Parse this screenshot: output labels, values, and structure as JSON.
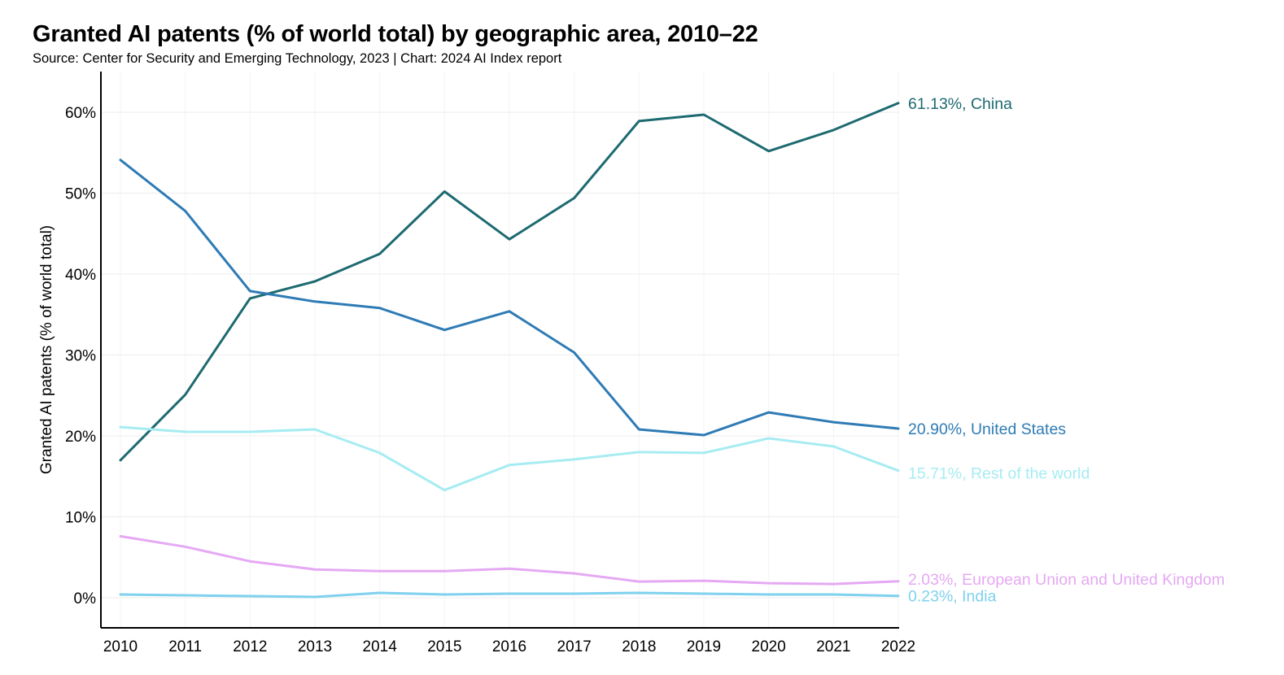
{
  "chart_data": {
    "type": "line",
    "title": "Granted AI patents (% of world total) by geographic area, 2010–22",
    "subtitle": "Source: Center for Security and Emerging Technology, 2023 | Chart: 2024 AI Index report",
    "xlabel": "",
    "ylabel": "Granted AI patents (% of world total)",
    "x": [
      2010,
      2011,
      2012,
      2013,
      2014,
      2015,
      2016,
      2017,
      2018,
      2019,
      2020,
      2021,
      2022
    ],
    "x_tick_labels": [
      "2010",
      "2011",
      "2012",
      "2013",
      "2014",
      "2015",
      "2016",
      "2017",
      "2018",
      "2019",
      "2020",
      "2021",
      "2022"
    ],
    "y_ticks": [
      0,
      10,
      20,
      30,
      40,
      50,
      60
    ],
    "y_tick_labels": [
      "0%",
      "10%",
      "20%",
      "30%",
      "40%",
      "50%",
      "60%"
    ],
    "ylim": [
      -3.8,
      65
    ],
    "grid": true,
    "series": [
      {
        "name": "China",
        "color": "#1d6a70",
        "end_label": "61.13%, China",
        "values": [
          17.0,
          25.1,
          37.0,
          39.1,
          42.5,
          50.2,
          44.3,
          49.4,
          58.9,
          59.7,
          55.2,
          57.8,
          61.13
        ]
      },
      {
        "name": "United States",
        "color": "#2e7bb5",
        "end_label": "20.90%, United States",
        "values": [
          54.1,
          47.8,
          37.9,
          36.6,
          35.8,
          33.1,
          35.4,
          30.3,
          20.8,
          20.1,
          22.9,
          21.7,
          20.9
        ]
      },
      {
        "name": "Rest of the world",
        "color": "#a6ecf2",
        "end_label": "15.71%, Rest of the world",
        "values": [
          21.1,
          20.5,
          20.5,
          20.8,
          17.9,
          13.3,
          16.4,
          17.1,
          18.0,
          17.9,
          19.7,
          18.7,
          15.71
        ]
      },
      {
        "name": "European Union and United Kingdom",
        "color": "#e5a9f3",
        "end_label": "2.03%, European Union and United Kingdom",
        "values": [
          7.6,
          6.3,
          4.5,
          3.5,
          3.3,
          3.3,
          3.6,
          3.0,
          2.0,
          2.1,
          1.8,
          1.7,
          2.03
        ]
      },
      {
        "name": "India",
        "color": "#7fd1ee",
        "end_label": "0.23%, India",
        "values": [
          0.4,
          0.3,
          0.2,
          0.1,
          0.6,
          0.4,
          0.5,
          0.5,
          0.6,
          0.5,
          0.4,
          0.4,
          0.23
        ]
      }
    ]
  }
}
